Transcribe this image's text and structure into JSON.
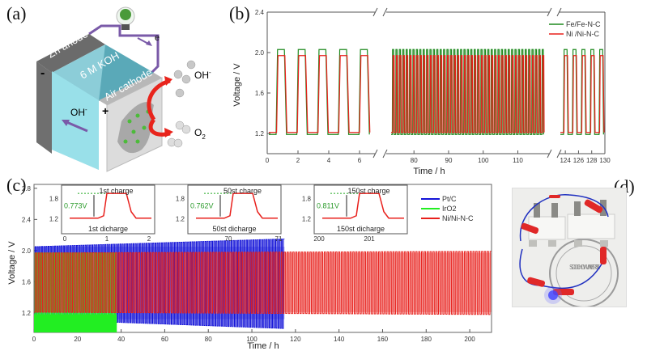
{
  "panels": {
    "a": {
      "label": "(a)",
      "anode_label": "Zn anode",
      "electrolyte_label": "6 M KOH",
      "cathode_label": "Air cathode",
      "minus_sign": "-",
      "plus_sign": "+",
      "electron_label": "e",
      "oh_left": "OH",
      "oh_right": "OH",
      "oh_superscript": "-",
      "o2_label": "O",
      "o2_subscript": "2",
      "colors": {
        "anode": "#6b6b6b",
        "electrolyte": "#8fd9e3",
        "cathode": "#d8d8d8",
        "wire": "#7a5aa8",
        "arrow": "#e8241c"
      }
    },
    "b": {
      "label": "(b)"
    },
    "c": {
      "label": "(c)"
    },
    "d": {
      "label": "(d)",
      "stamp_text": "SOOCHOW UNIVERSITY",
      "led_color": "#3a3cff"
    }
  },
  "chart_data": [
    {
      "id": "b",
      "type": "line",
      "title": "",
      "xlabel": "Time / h",
      "ylabel": "Voltage / V",
      "ylim": [
        1.0,
        2.4
      ],
      "yticks": [
        "1.2",
        "1.6",
        "2.0",
        "2.4"
      ],
      "broken_x_axis": true,
      "x_segments": [
        {
          "range": [
            0,
            7
          ],
          "ticks": [
            "0",
            "2",
            "4",
            "6"
          ]
        },
        {
          "range": [
            72,
            119
          ],
          "ticks": [
            "80",
            "90",
            "100",
            "110"
          ]
        },
        {
          "range": [
            123,
            130
          ],
          "ticks": [
            "124",
            "126",
            "128",
            "130"
          ]
        }
      ],
      "legend": "top-right",
      "series": [
        {
          "name": "Fe/Fe-N-C",
          "color": "#1e8a1e",
          "charge_V": 2.03,
          "discharge_V": 1.19,
          "segment_cycles": [
            5,
            45,
            5
          ]
        },
        {
          "name": "Ni /Ni-N-C",
          "color": "#e8201c",
          "charge_V": 1.97,
          "discharge_V": 1.21,
          "segment_cycles": [
            5,
            45,
            5
          ]
        }
      ]
    },
    {
      "id": "c",
      "type": "line",
      "title": "",
      "xlabel": "Time / h",
      "ylabel": "Voltage / V",
      "xlim": [
        0,
        210
      ],
      "ylim": [
        0.95,
        2.85
      ],
      "xticks": [
        "0",
        "20",
        "40",
        "60",
        "80",
        "100",
        "120",
        "140",
        "160",
        "180",
        "200"
      ],
      "yticks": [
        "1.2",
        "1.6",
        "2.0",
        "2.4",
        "2.8"
      ],
      "legend": "top-right",
      "series": [
        {
          "name": "Pt/C",
          "color": "#1414d8",
          "x_end": 115,
          "charge_V": [
            2.05,
            2.15
          ],
          "discharge_V": [
            1.12,
            1.0
          ]
        },
        {
          "name": "IrO2",
          "color": "#22ee22",
          "x_end": 38,
          "charge_V": [
            1.97,
            1.97
          ],
          "discharge_V": [
            1.18,
            1.18
          ]
        },
        {
          "name": "Ni/Ni-N-C",
          "color": "#e8201c",
          "x_end": 210,
          "charge_V": [
            1.97,
            1.99
          ],
          "discharge_V": [
            1.21,
            1.18
          ]
        }
      ],
      "insets": [
        {
          "charge_label": "1st charge",
          "discharge_label": "1st dicharge",
          "gap_label": "0.773V",
          "xticks": [
            "0",
            "1",
            "2"
          ],
          "yticks": [
            "1.2",
            "1.8"
          ]
        },
        {
          "charge_label": "50st charge",
          "discharge_label": "50st dicharge",
          "gap_label": "0.762V",
          "xticks": [
            "70",
            "71"
          ],
          "yticks": [
            "1.2",
            "1.8"
          ]
        },
        {
          "charge_label": "150st charge",
          "discharge_label": "150st dicharge",
          "gap_label": "0.811V",
          "xticks": [
            "200",
            "201"
          ],
          "yticks": [
            "1.2",
            "1.8"
          ]
        }
      ]
    }
  ]
}
